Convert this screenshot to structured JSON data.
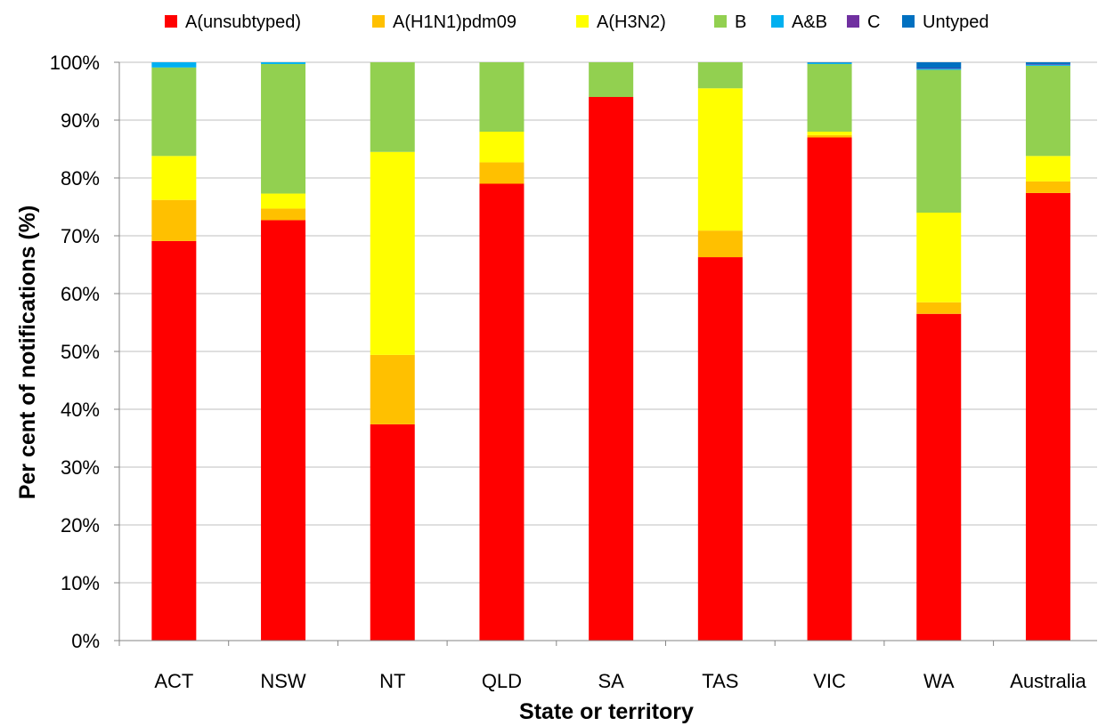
{
  "chart_data": {
    "type": "bar",
    "stacked": true,
    "title": "",
    "xlabel": "State or territory",
    "ylabel": "Per cent of notifications (%)",
    "ylim": [
      0,
      100
    ],
    "yticks": [
      "0%",
      "10%",
      "20%",
      "30%",
      "40%",
      "50%",
      "60%",
      "70%",
      "80%",
      "90%",
      "100%"
    ],
    "grid": true,
    "legend_position": "top",
    "categories": [
      "ACT",
      "NSW",
      "NT",
      "QLD",
      "SA",
      "TAS",
      "VIC",
      "WA",
      "Australia"
    ],
    "series": [
      {
        "name": "A(unsubtyped)",
        "color": "#ff0000",
        "values": [
          69.1,
          72.7,
          37.4,
          79.0,
          94.0,
          66.3,
          87.0,
          56.5,
          77.4
        ]
      },
      {
        "name": "A(H1N1)pdm09",
        "color": "#ffc000",
        "values": [
          7.1,
          2.0,
          12.0,
          3.7,
          0.0,
          4.6,
          0.4,
          2.0,
          2.0
        ]
      },
      {
        "name": "A(H3N2)",
        "color": "#ffff00",
        "values": [
          7.6,
          2.6,
          35.1,
          5.3,
          0.0,
          24.6,
          0.6,
          15.5,
          4.4
        ]
      },
      {
        "name": "B",
        "color": "#92d050",
        "values": [
          15.3,
          22.4,
          15.5,
          12.0,
          6.0,
          4.5,
          11.7,
          24.7,
          15.6
        ]
      },
      {
        "name": "A&B",
        "color": "#00b0f0",
        "values": [
          0.9,
          0.3,
          0.0,
          0.0,
          0.0,
          0.0,
          0.2,
          0.2,
          0.2
        ]
      },
      {
        "name": "C",
        "color": "#7030a0",
        "values": [
          0.0,
          0.0,
          0.0,
          0.0,
          0.0,
          0.0,
          0.0,
          0.1,
          0.1
        ]
      },
      {
        "name": "Untyped",
        "color": "#0070c0",
        "values": [
          0.0,
          0.0,
          0.0,
          0.0,
          0.0,
          0.0,
          0.1,
          1.0,
          0.3
        ]
      }
    ]
  }
}
